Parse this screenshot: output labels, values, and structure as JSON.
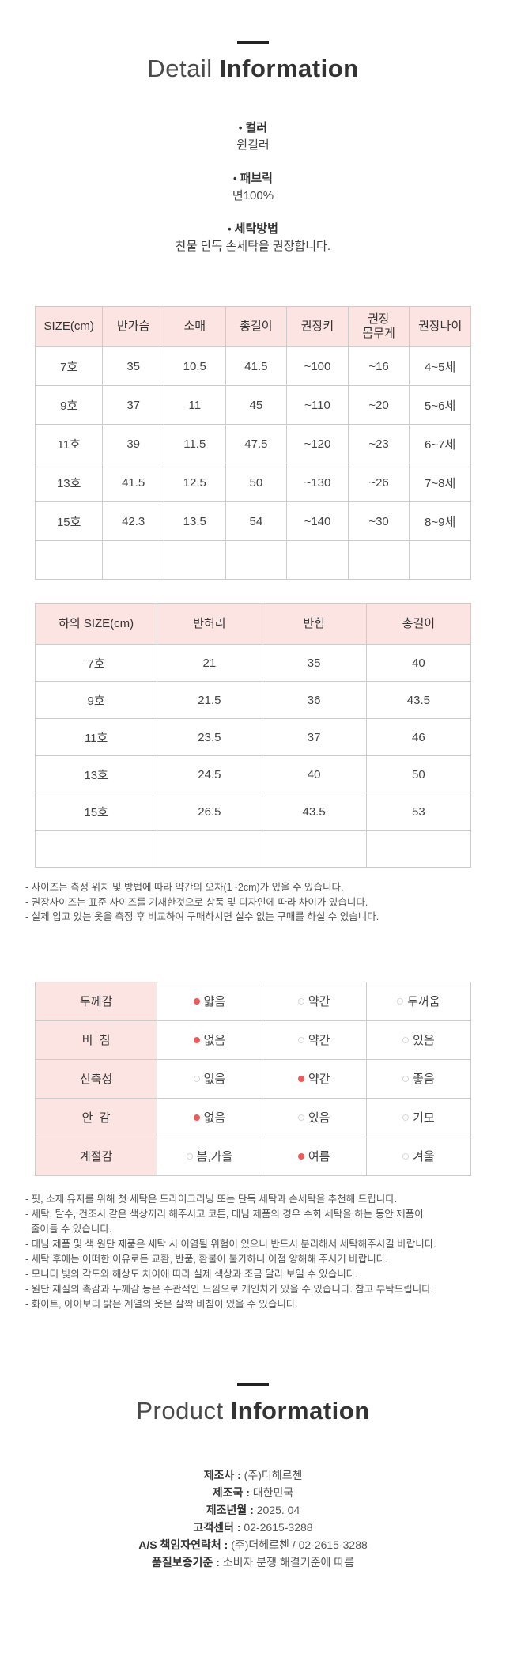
{
  "colors": {
    "header_pink": "#fce4e2",
    "accent_red": "#ee5a5a",
    "border_gray": "#cccccc",
    "title_dark": "#333333"
  },
  "detail_section": {
    "title_light": "Detail",
    "title_bold": "Information",
    "bullets": [
      {
        "label": "컬러",
        "value": "원컬러"
      },
      {
        "label": "패브릭",
        "value": "면100%"
      },
      {
        "label": "세탁방법",
        "value": "찬물 단독 손세탁을 권장합니다."
      }
    ]
  },
  "size_table_top": {
    "headers": [
      "SIZE(cm)",
      "반가슴",
      "소매",
      "총길이",
      "권장키",
      "권장\n몸무게",
      "권장나이"
    ],
    "rows": [
      [
        "7호",
        "35",
        "10.5",
        "41.5",
        "~100",
        "~16",
        "4~5세"
      ],
      [
        "9호",
        "37",
        "11",
        "45",
        "~110",
        "~20",
        "5~6세"
      ],
      [
        "11호",
        "39",
        "11.5",
        "47.5",
        "~120",
        "~23",
        "6~7세"
      ],
      [
        "13호",
        "41.5",
        "12.5",
        "50",
        "~130",
        "~26",
        "7~8세"
      ],
      [
        "15호",
        "42.3",
        "13.5",
        "54",
        "~140",
        "~30",
        "8~9세"
      ],
      [
        "",
        "",
        "",
        "",
        "",
        "",
        ""
      ]
    ]
  },
  "size_table_bottom": {
    "headers": [
      "하의 SIZE(cm)",
      "반허리",
      "반힙",
      "총길이"
    ],
    "rows": [
      [
        "7호",
        "21",
        "35",
        "40"
      ],
      [
        "9호",
        "21.5",
        "36",
        "43.5"
      ],
      [
        "11호",
        "23.5",
        "37",
        "46"
      ],
      [
        "13호",
        "24.5",
        "40",
        "50"
      ],
      [
        "15호",
        "26.5",
        "43.5",
        "53"
      ],
      [
        "",
        "",
        "",
        ""
      ]
    ]
  },
  "size_notes": {
    "lines": [
      "- 사이즈는 측정 위치 및 방법에 따라 약간의 오차(1~2cm)가 있을 수 있습니다.",
      "- 권장사이즈는 표준 사이즈를 기재한것으로 상품 및 디자인에 따라 차이가 있습니다.",
      "- 실제 입고 있는 옷을 측정 후 비교하여 구매하시면 실수 없는 구매를 하실 수 있습니다."
    ]
  },
  "spec_table": {
    "rows": [
      {
        "label": "두께감",
        "options": [
          {
            "text": "얇음",
            "selected": true
          },
          {
            "text": "약간",
            "selected": false
          },
          {
            "text": "두꺼움",
            "selected": false
          }
        ]
      },
      {
        "label": "비  침",
        "options": [
          {
            "text": "없음",
            "selected": true
          },
          {
            "text": "약간",
            "selected": false
          },
          {
            "text": "있음",
            "selected": false
          }
        ]
      },
      {
        "label": "신축성",
        "options": [
          {
            "text": "없음",
            "selected": false
          },
          {
            "text": "약간",
            "selected": true
          },
          {
            "text": "좋음",
            "selected": false
          }
        ]
      },
      {
        "label": "안  감",
        "options": [
          {
            "text": "없음",
            "selected": true
          },
          {
            "text": "있음",
            "selected": false
          },
          {
            "text": "기모",
            "selected": false
          }
        ]
      },
      {
        "label": "계절감",
        "options": [
          {
            "text": "봄,가을",
            "selected": false
          },
          {
            "text": "여름",
            "selected": true
          },
          {
            "text": "겨울",
            "selected": false
          }
        ]
      }
    ]
  },
  "care_notes": {
    "lines": [
      "- 핏, 소재 유지를 위해 첫 세탁은 드라이크리닝 또는 단독 세탁과 손세탁을 추천해 드립니다.",
      "- 세탁, 탈수, 건조시 같은 색상끼리 해주시고 코튼, 데님 제품의 경우 수회 세탁을 하는 동안 제품이",
      "  줄어들 수 있습니다.",
      "- 데님 제품 및 색 원단 제품은 세탁 시 이염될 위험이 있으니 반드시 분리해서 세탁해주시길 바랍니다.",
      "- 세탁 후에는 어떠한 이유로든 교환, 반품, 환불이 불가하니 이점 양해해 주시기 바랍니다.",
      "- 모니터 빛의 각도와 해상도 차이에 따라 실제 색상과 조금 달라 보일 수 있습니다.",
      "- 원단 재질의 촉감과 두께감 등은 주관적인 느낌으로 개인차가 있을 수 있습니다. 참고 부탁드립니다.",
      "- 화이트, 아이보리 밝은 계열의 옷은 살짝 비침이 있을 수 있습니다."
    ]
  },
  "product_section": {
    "title_light": "Product",
    "title_bold": "Information",
    "separator": " : ",
    "items": [
      {
        "label": "제조사",
        "value": "(주)더헤르첸"
      },
      {
        "label": "제조국",
        "value": "대한민국"
      },
      {
        "label": "제조년월",
        "value": "2025. 04"
      },
      {
        "label": "고객센터",
        "value": "02-2615-3288"
      },
      {
        "label": "A/S 책임자연락처",
        "value": "(주)더헤르첸 / 02-2615-3288"
      },
      {
        "label": "품질보증기준",
        "value": "소비자 분쟁 해결기준에 따름"
      }
    ]
  }
}
